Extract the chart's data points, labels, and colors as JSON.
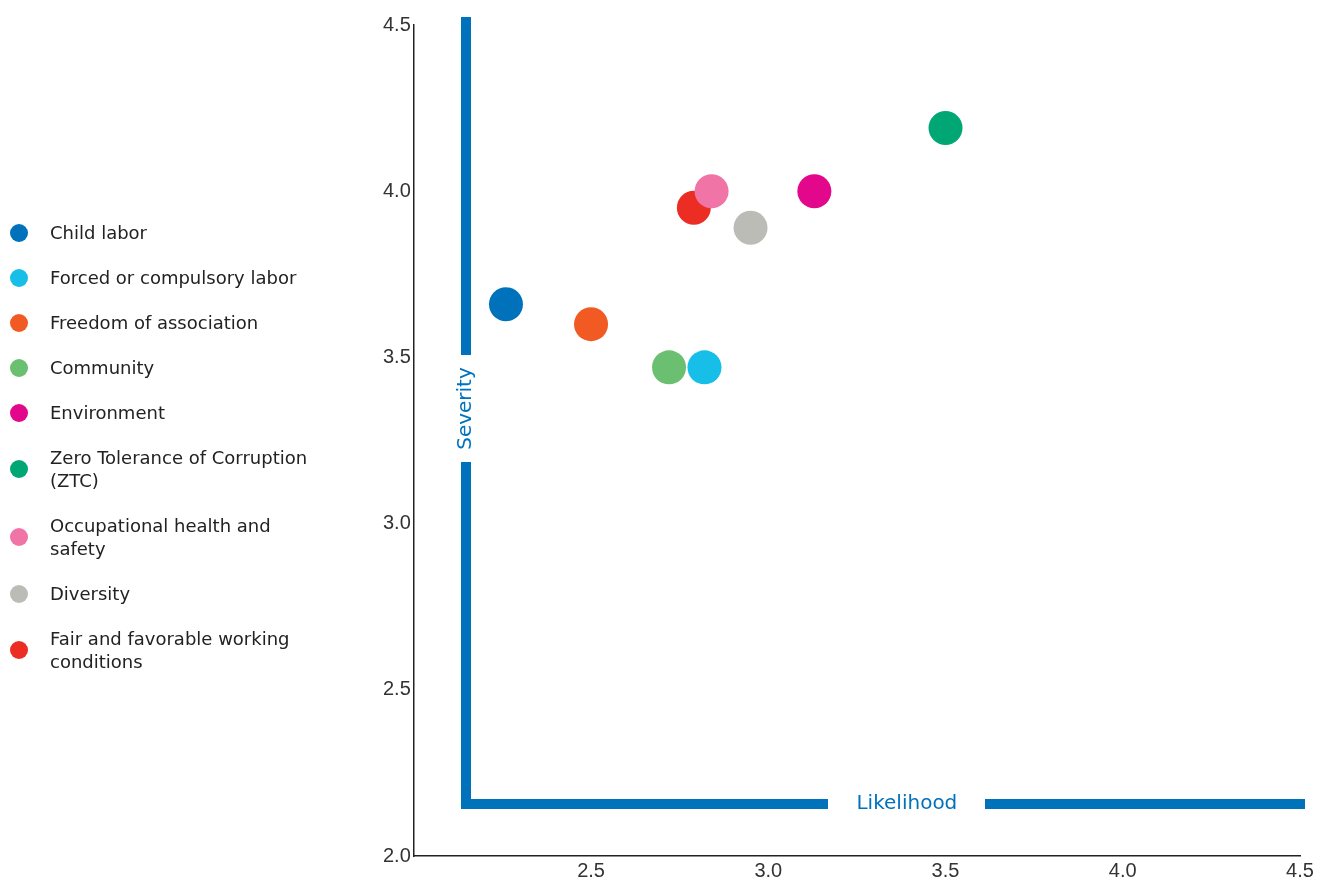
{
  "chart_data": {
    "type": "scatter",
    "xlabel": "Likelihood",
    "ylabel": "Severity",
    "xlim": [
      2.0,
      4.5
    ],
    "xticks": [
      2.5,
      {
        "value": 3.0,
        "label": "3.0"
      },
      3.5,
      {
        "value": 4.0,
        "label": "4.0"
      },
      4.5
    ],
    "ylim": [
      2.0,
      4.5
    ],
    "yticks": [
      {
        "value": 2.0,
        "label": "2.0"
      },
      2.5,
      {
        "value": 3.0,
        "label": "3.0"
      },
      3.5,
      {
        "value": 4.0,
        "label": "4.0"
      },
      4.5
    ],
    "grid": false,
    "legend": "left",
    "marker": "circle",
    "series": [
      {
        "name": "Child labor",
        "color": "#0072bc",
        "x": [
          2.26
        ],
        "values": [
          3.66
        ]
      },
      {
        "name": "Forced or compulsory labor",
        "color": "#17bfe8",
        "x": [
          2.82
        ],
        "values": [
          3.47
        ]
      },
      {
        "name": "Freedom of association",
        "color": "#f15a22",
        "x": [
          2.5
        ],
        "values": [
          3.6
        ]
      },
      {
        "name": "Community",
        "color": "#6abf70",
        "x": [
          2.72
        ],
        "values": [
          3.47
        ]
      },
      {
        "name": "Environment",
        "color": "#e2078b",
        "x": [
          3.13
        ],
        "values": [
          4.0
        ]
      },
      {
        "name": "Zero Tolerance of Corruption (ZTC)",
        "color": "#00a775",
        "x": [
          3.5
        ],
        "values": [
          4.19
        ]
      },
      {
        "name": "Occupational health and safety",
        "color": "#f174a6",
        "x": [
          2.84
        ],
        "values": [
          4.0
        ]
      },
      {
        "name": "Diversity",
        "color": "#bcbcb7",
        "x": [
          2.95
        ],
        "values": [
          3.89
        ]
      },
      {
        "name": "Fair and favorable working conditions",
        "color": "#ec2d24",
        "x": [
          2.79
        ],
        "values": [
          3.95
        ]
      }
    ]
  }
}
